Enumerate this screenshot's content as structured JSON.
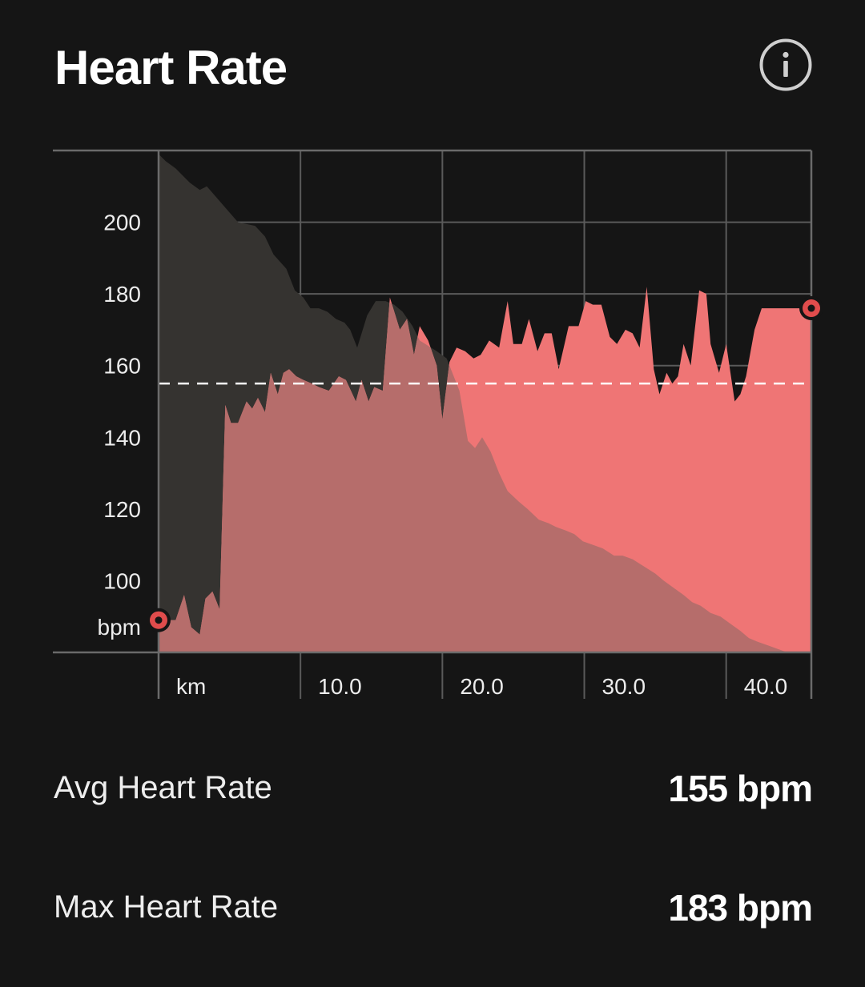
{
  "header": {
    "title": "Heart Rate",
    "info_icon": "info-icon"
  },
  "colors": {
    "background": "#151515",
    "heart_rate_fill": "#ef7575",
    "elevation_fill": "#353330",
    "overlap_fill": "#b66d6b",
    "grid": "#5a5a5a",
    "average_line": "#ffffff",
    "marker": "#e04c4c"
  },
  "chart_data": {
    "type": "area",
    "y_unit_label": "bpm",
    "x_unit_label": "km",
    "ylim": [
      80,
      220
    ],
    "y_ticks": [
      100,
      120,
      140,
      160,
      180,
      200
    ],
    "xlim": [
      0,
      46
    ],
    "x_ticks": [
      10,
      20,
      30,
      40
    ],
    "x_tick_labels": [
      "10.0",
      "20.0",
      "30.0",
      "40.0"
    ],
    "grid": true,
    "average_line": 155,
    "series": [
      {
        "role": "heart_rate",
        "x": [
          0,
          0.5,
          1.2,
          1.8,
          2.3,
          2.9,
          3.3,
          3.8,
          4.3,
          4.7,
          5.1,
          5.6,
          6.2,
          6.6,
          7.0,
          7.5,
          7.9,
          8.4,
          8.8,
          9.2,
          9.7,
          10.2,
          10.8,
          11.3,
          12.0,
          12.7,
          13.2,
          13.9,
          14.3,
          14.8,
          15.2,
          15.8,
          16.3,
          17.0,
          17.5,
          18.0,
          18.4,
          19.0,
          19.6,
          20.0,
          20.5,
          21.0,
          21.6,
          22.2,
          22.7,
          23.3,
          24.0,
          24.6,
          25.0,
          25.6,
          26.1,
          26.7,
          27.2,
          27.7,
          28.2,
          28.9,
          29.6,
          30.1,
          30.6,
          31.2,
          31.8,
          32.3,
          32.9,
          33.4,
          33.9,
          34.4,
          34.9,
          35.3,
          35.8,
          36.2,
          36.6,
          37.0,
          37.5,
          38.1,
          38.6,
          38.9,
          39.5,
          40.0,
          40.6,
          41.0,
          41.4,
          42.0,
          42.5,
          43.2,
          44.0,
          45.0,
          46.0
        ],
        "y": [
          89,
          89,
          89,
          96,
          87,
          85,
          95,
          97,
          92,
          149,
          144,
          144,
          150,
          148,
          151,
          147,
          158,
          152,
          158,
          159,
          157,
          156,
          155,
          154,
          153,
          157,
          156,
          150,
          156,
          150,
          154,
          153,
          179,
          170,
          173,
          163,
          171,
          167,
          160,
          145,
          161,
          165,
          164,
          162,
          163,
          167,
          165,
          178,
          166,
          166,
          173,
          164,
          169,
          169,
          159,
          171,
          171,
          178,
          177,
          177,
          168,
          166,
          170,
          169,
          165,
          182,
          159,
          152,
          158,
          155,
          157,
          166,
          160,
          181,
          180,
          166,
          158,
          166,
          150,
          152,
          157,
          170,
          176,
          176,
          176,
          176,
          176
        ]
      },
      {
        "role": "elevation_profile",
        "x": [
          0,
          0.5,
          1.2,
          2.2,
          2.9,
          3.4,
          4.5,
          5.6,
          6.8,
          7.5,
          8.1,
          9.0,
          9.6,
          10.2,
          10.7,
          11.3,
          11.9,
          12.5,
          13.1,
          13.5,
          14.0,
          14.7,
          15.3,
          16.0,
          16.6,
          17.2,
          17.9,
          18.4,
          19.2,
          19.6,
          20.3,
          21.2,
          21.8,
          22.3,
          22.8,
          23.4,
          24.0,
          24.6,
          25.4,
          26.0,
          26.8,
          27.5,
          28.0,
          28.7,
          29.3,
          29.9,
          30.6,
          31.3,
          32.1,
          32.7,
          33.4,
          34.2,
          35.0,
          35.6,
          36.3,
          37.0,
          37.6,
          38.2,
          38.9,
          39.6,
          40.3,
          41.0,
          41.6,
          42.2,
          42.9,
          43.6,
          44.3,
          45.0,
          46.0
        ],
        "y": [
          219,
          217,
          215,
          211,
          209,
          210,
          205,
          200,
          199,
          196,
          191,
          187,
          181,
          179,
          176,
          176,
          175,
          173,
          172,
          170,
          165,
          174,
          178,
          178,
          177,
          175,
          171,
          167,
          165,
          164,
          162,
          153,
          139,
          137,
          140,
          136,
          130,
          125,
          122,
          120,
          117,
          116,
          115,
          114,
          113,
          111,
          110,
          109,
          107,
          107,
          106,
          104,
          102,
          100,
          98,
          96,
          94,
          93,
          91,
          90,
          88,
          86,
          84,
          83,
          82,
          81,
          80,
          80,
          80
        ]
      }
    ],
    "start_marker": {
      "x": 0,
      "y": 89
    },
    "end_marker": {
      "x": 46,
      "y": 176
    }
  },
  "stats": {
    "avg_label": "Avg Heart Rate",
    "avg_value": "155 bpm",
    "max_label": "Max Heart Rate",
    "max_value": "183 bpm"
  }
}
